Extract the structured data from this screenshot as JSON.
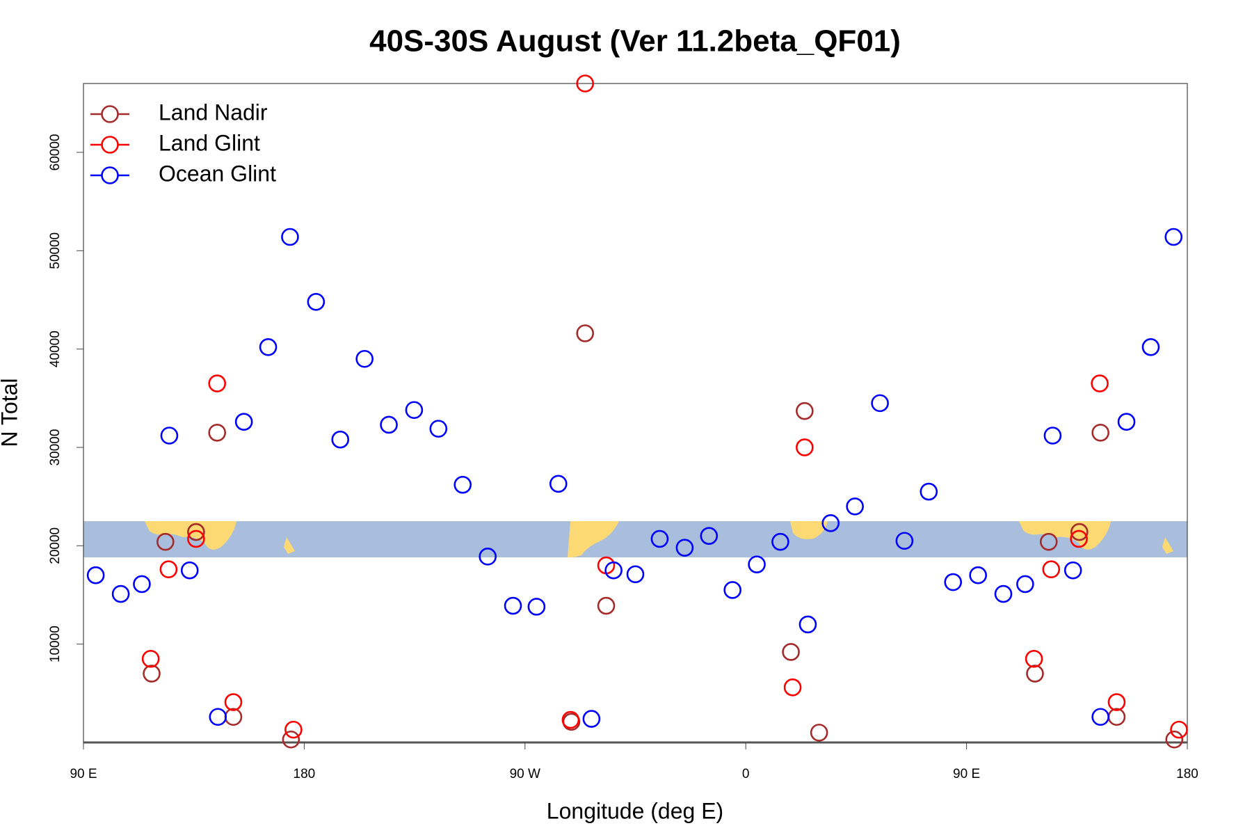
{
  "chart_data": {
    "type": "scatter",
    "title": "40S-30S August (Ver 11.2beta_QF01)",
    "xlabel": "Longitude (deg E)",
    "ylabel": "N Total",
    "xlim": [
      90,
      540
    ],
    "ylim": [
      0,
      67000
    ],
    "xticks": [
      {
        "value": 90,
        "label": "90 E"
      },
      180,
      {
        "value": 270,
        "label": "90 W"
      },
      {
        "value": 360,
        "label": "0"
      },
      {
        "value": 450,
        "label": "90 E"
      },
      {
        "value": 540,
        "label": "180"
      }
    ],
    "yticks": [
      10000,
      20000,
      30000,
      40000,
      50000,
      60000
    ],
    "legend": "top-left",
    "series": [
      {
        "name": "Land Nadir",
        "color": "#a52a2a",
        "x": [
          117.8,
          123.4,
          135.9,
          144.5,
          151.1,
          174.6,
          288.9,
          294.5,
          303.1,
          378.4,
          384.0,
          389.9,
          477.9,
          483.5,
          496.0,
          504.6,
          511.2,
          534.7
        ],
        "values": [
          7000,
          20400,
          21400,
          31500,
          2600,
          300,
          2100,
          41600,
          13900,
          9200,
          33700,
          1000,
          7000,
          20400,
          21400,
          31500,
          2600,
          300
        ]
      },
      {
        "name": "Land Glint",
        "color": "#ff0000",
        "x": [
          117.4,
          124.7,
          135.9,
          144.5,
          151.1,
          175.6,
          288.6,
          294.5,
          303.1,
          379.1,
          384.0,
          477.5,
          484.5,
          495.8,
          504.3,
          511.2,
          536.6
        ],
        "values": [
          8500,
          17600,
          20700,
          36500,
          4100,
          1300,
          2300,
          67000,
          18000,
          5600,
          30000,
          8500,
          17600,
          20700,
          36500,
          4100,
          1300
        ]
      },
      {
        "name": "Ocean Glint",
        "color": "#0000ff",
        "x": [
          95.0,
          105.2,
          113.8,
          125.0,
          133.3,
          144.8,
          155.4,
          165.3,
          174.2,
          184.8,
          194.7,
          204.6,
          214.5,
          224.8,
          234.7,
          244.6,
          254.8,
          265.1,
          274.7,
          283.6,
          297.1,
          306.1,
          315.0,
          324.9,
          335.1,
          345.0,
          354.6,
          364.5,
          374.1,
          385.3,
          394.6,
          404.5,
          414.7,
          424.7,
          434.6,
          444.5,
          454.7,
          465.0,
          473.9,
          485.1,
          493.4,
          504.6,
          515.2,
          525.1,
          534.4
        ],
        "values": [
          17000,
          15100,
          16100,
          31200,
          17500,
          2600,
          32600,
          40200,
          51400,
          44800,
          30800,
          39000,
          32300,
          33800,
          31900,
          26200,
          18900,
          13900,
          13800,
          26300,
          2400,
          17500,
          17100,
          20700,
          19800,
          21000,
          15500,
          18100,
          20400,
          12000,
          22300,
          24000,
          34500,
          20500,
          25500,
          16300,
          17000,
          15100,
          16100,
          31200,
          17500,
          2600,
          32600,
          40200,
          51400
        ]
      }
    ]
  }
}
